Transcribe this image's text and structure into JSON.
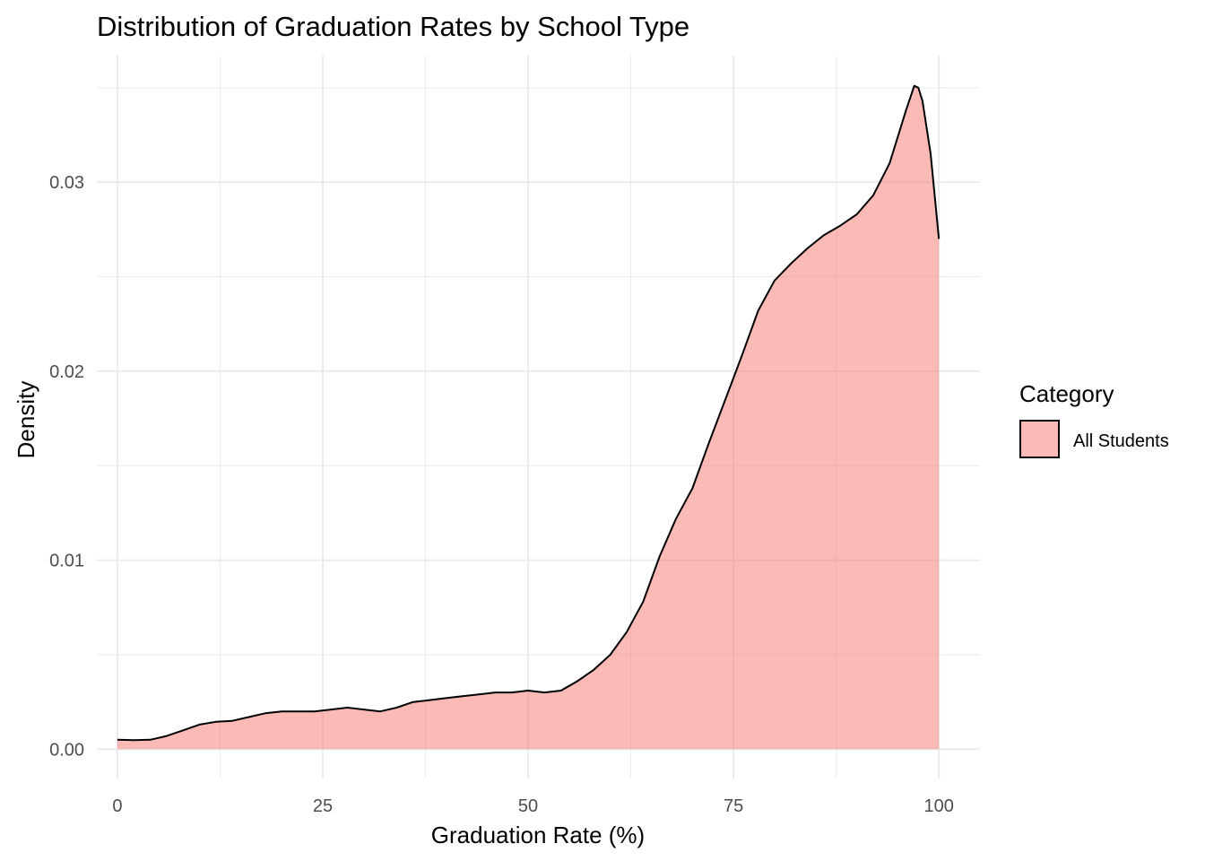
{
  "chart_data": {
    "type": "area",
    "title": "Distribution of Graduation Rates by School Type",
    "xlabel": "Graduation Rate (%)",
    "ylabel": "Density",
    "xlim": [
      -2.5,
      105
    ],
    "ylim": [
      -0.00155,
      0.0367
    ],
    "x_ticks": [
      0,
      25,
      50,
      75,
      100
    ],
    "x_tick_labels": [
      "0",
      "25",
      "50",
      "75",
      "100"
    ],
    "y_ticks": [
      0,
      0.01,
      0.02,
      0.03
    ],
    "y_tick_labels": [
      "0.00",
      "0.01",
      "0.02",
      "0.03"
    ],
    "grid": true,
    "legend": {
      "title": "Category",
      "position": "right"
    },
    "series": [
      {
        "name": "All Students",
        "fill": "#F8766D",
        "fill_opacity": 0.5,
        "stroke": "#000000",
        "x": [
          0,
          2,
          4,
          6,
          8,
          10,
          12,
          14,
          16,
          18,
          20,
          22,
          24,
          26,
          28,
          30,
          32,
          34,
          36,
          38,
          40,
          42,
          44,
          46,
          48,
          50,
          52,
          54,
          56,
          58,
          60,
          62,
          64,
          66,
          68,
          70,
          72,
          74,
          76,
          78,
          80,
          82,
          84,
          86,
          88,
          90,
          92,
          94,
          96,
          97,
          97.5,
          98,
          99,
          100
        ],
        "y": [
          0.0005,
          0.00048,
          0.0005,
          0.0007,
          0.001,
          0.0013,
          0.00145,
          0.0015,
          0.0017,
          0.0019,
          0.002,
          0.002,
          0.002,
          0.0021,
          0.0022,
          0.0021,
          0.002,
          0.0022,
          0.0025,
          0.0026,
          0.0027,
          0.0028,
          0.0029,
          0.003,
          0.003,
          0.0031,
          0.003,
          0.0031,
          0.0036,
          0.0042,
          0.005,
          0.0062,
          0.0078,
          0.0102,
          0.0122,
          0.0138,
          0.0162,
          0.0185,
          0.0208,
          0.0232,
          0.0248,
          0.0257,
          0.0265,
          0.0272,
          0.0277,
          0.0283,
          0.0293,
          0.031,
          0.0338,
          0.0351,
          0.035,
          0.0343,
          0.0315,
          0.027
        ]
      }
    ]
  }
}
